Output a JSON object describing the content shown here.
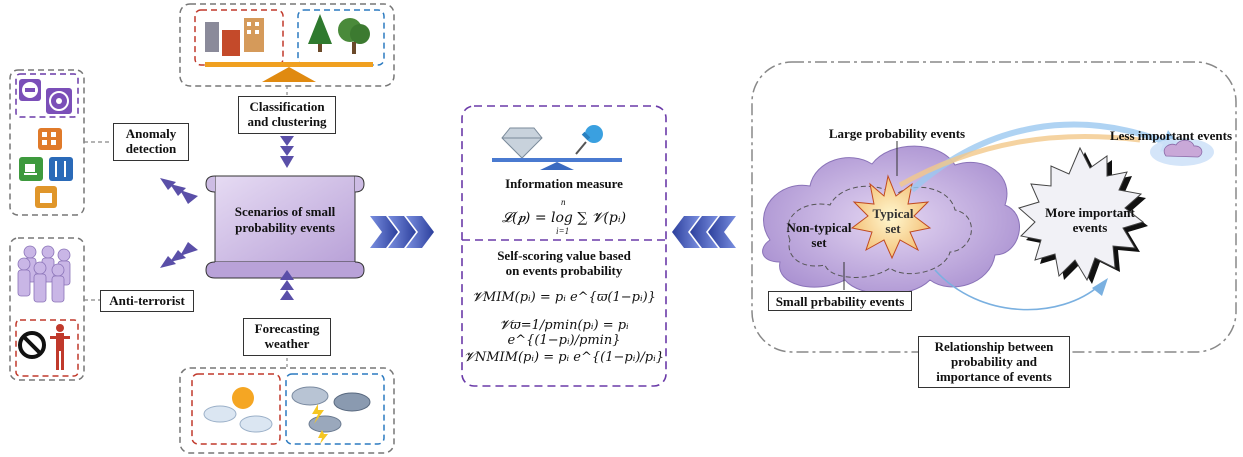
{
  "left": {
    "anomaly_detection": "Anomaly\ndetection",
    "anti_terrorist": "Anti-terrorist"
  },
  "top": {
    "classification": "Classification\nand clustering"
  },
  "bottom": {
    "forecasting": "Forecasting\nweather"
  },
  "scroll": {
    "title": "Scenarios of small\nprobability events"
  },
  "center": {
    "info_title": "Information measure",
    "info_formula": "𝓛(𝒑) = log ∑ 𝓥(pᵢ)",
    "sum_upper": "n",
    "sum_lower": "i=1",
    "self_scoring_title": "Self-scoring value based\non events probability",
    "formula_mim": "𝓥MIM(pᵢ) = pᵢ e^{ϖ(1−pᵢ)}",
    "formula_varpi": "𝓥ϖ=1/pmin(pᵢ) = pᵢ e^{(1−pᵢ)/pmin}",
    "formula_nmim": "𝓥NMIM(pᵢ) = pᵢ e^{(1−pᵢ)/pᵢ}"
  },
  "right": {
    "less_important": "Less important events",
    "large_probability": "Large probability events",
    "typical_set": "Typical\nset",
    "non_typical_set": "Non-typical\nset",
    "more_important": "More important\nevents",
    "small_probability": "Small prbability events",
    "relationship": "Relationship between\nprobability and\nimportance of events"
  },
  "colors": {
    "purple_arrow": "#5a4fa8",
    "blue_arrow": "#3c52b0",
    "dash_purple": "#6a3aa8",
    "dash_red": "#c0392b",
    "dash_blue": "#2b7ac0",
    "dash_gray": "#777777",
    "scroll_fill": "#cbb8e3",
    "cloud_fill": "#c8b3e0",
    "star_dark": "#111111",
    "star_light": "#f3f3f8",
    "base_orange": "#f0a020"
  },
  "icons": [
    "no-entry-icon",
    "fan-icon",
    "building-icon",
    "coffee-icon",
    "utensils-icon",
    "luggage-icon",
    "people-icon",
    "no-sign-person-icon",
    "city-buildings-icon",
    "trees-icon",
    "sun-cloud-icon",
    "storm-clouds-icon",
    "diamond-icon",
    "pushpin-icon",
    "balance-icon"
  ]
}
